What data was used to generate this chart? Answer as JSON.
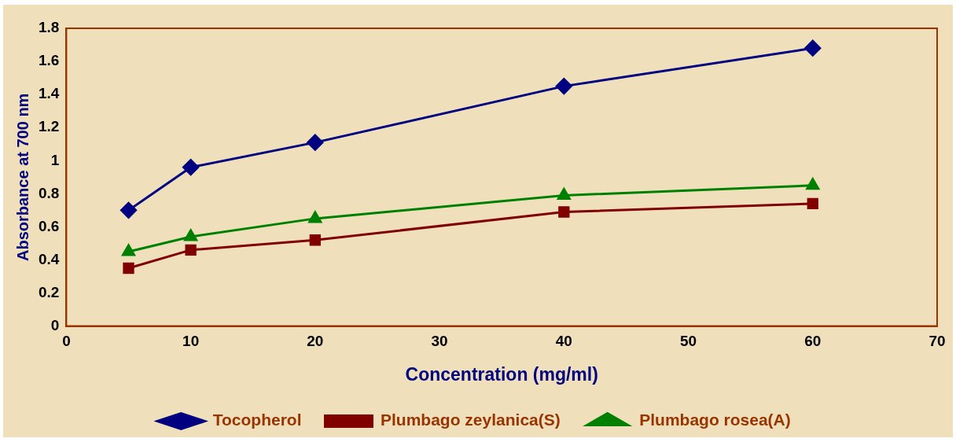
{
  "chart_data": {
    "type": "line",
    "xlabel": "Concentration (mg/ml)",
    "ylabel": "Absorbance at 700 nm",
    "x": [
      5,
      10,
      20,
      40,
      60
    ],
    "series": [
      {
        "name": "Tocopherol",
        "color": "#000080",
        "marker": "diamond",
        "values": [
          0.7,
          0.96,
          1.11,
          1.45,
          1.68
        ]
      },
      {
        "name": "Plumbago zeylanica(S)",
        "color": "#800000",
        "marker": "square",
        "values": [
          0.35,
          0.46,
          0.52,
          0.69,
          0.74
        ]
      },
      {
        "name": "Plumbago rosea(A)",
        "color": "#008000",
        "marker": "triangle",
        "values": [
          0.45,
          0.54,
          0.65,
          0.79,
          0.85
        ]
      }
    ],
    "xlim": [
      0,
      70
    ],
    "xticks": [
      0,
      10,
      20,
      30,
      40,
      50,
      60,
      70
    ],
    "ylim": [
      0,
      1.8
    ],
    "yticks": [
      0,
      0.2,
      0.4,
      0.6,
      0.8,
      1,
      1.2,
      1.4,
      1.6,
      1.8
    ],
    "grid": false,
    "legend": "bottom",
    "line_style": "solid"
  }
}
